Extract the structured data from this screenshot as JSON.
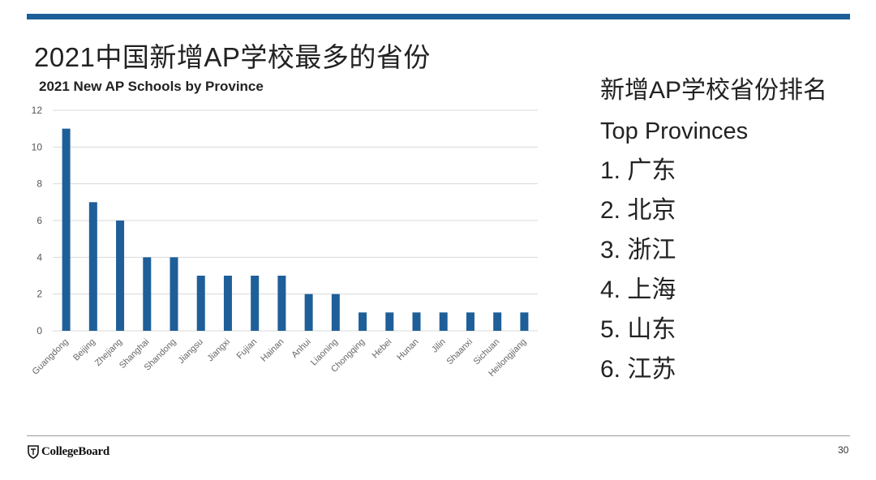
{
  "slide": {
    "title": "2021中国新增AP学校最多的省份",
    "page_number": "30",
    "brand": "CollegeBoard"
  },
  "ranking": {
    "heading": "新增AP学校省份排名",
    "subheading": "Top Provinces",
    "items": [
      "1. 广东",
      "2. 北京",
      "3. 浙江",
      "4. 上海",
      "5. 山东",
      "6. 江苏"
    ]
  },
  "chart_data": {
    "type": "bar",
    "title": "2021 New AP Schools by Province",
    "xlabel": "",
    "ylabel": "",
    "ylim": [
      0,
      12
    ],
    "yticks": [
      0,
      2,
      4,
      6,
      8,
      10,
      12
    ],
    "grid": true,
    "categories": [
      "Guangdong",
      "Beijing",
      "Zhejiang",
      "Shanghai",
      "Shandong",
      "Jiangsu",
      "Jiangxi",
      "Fujian",
      "Hainan",
      "Anhui",
      "Liaoning",
      "Chongqing",
      "Hebei",
      "Hunan",
      "Jilin",
      "Shaanxi",
      "Sichuan",
      "Heilongjiang"
    ],
    "values": [
      11,
      7,
      6,
      4,
      4,
      3,
      3,
      3,
      3,
      2,
      2,
      1,
      1,
      1,
      1,
      1,
      1,
      1
    ],
    "bar_color": "#1f5f99"
  }
}
